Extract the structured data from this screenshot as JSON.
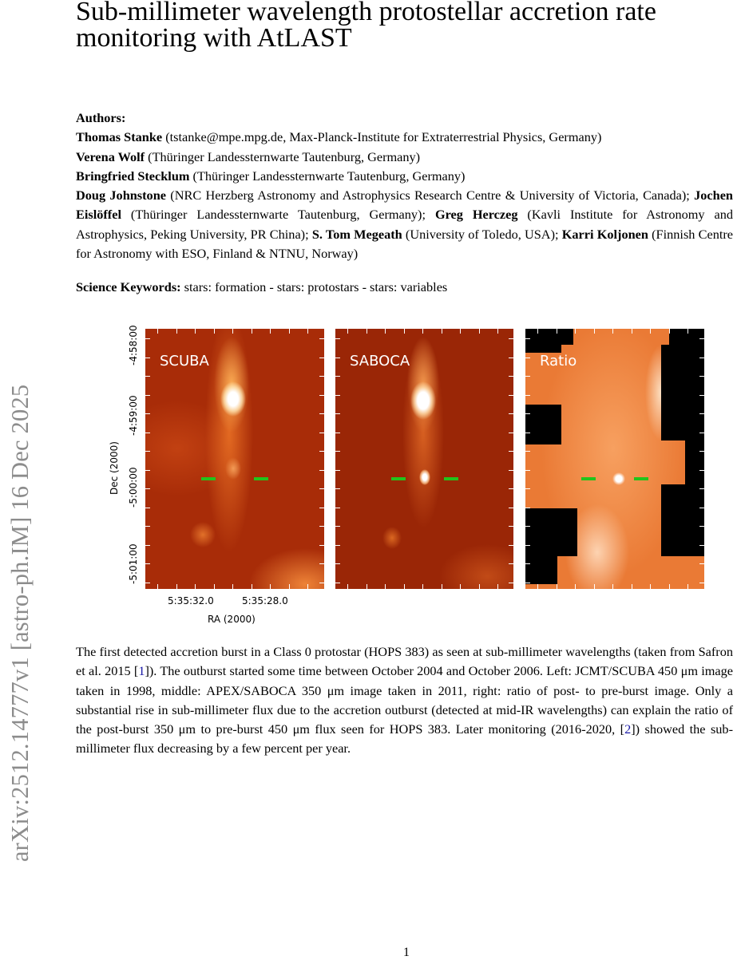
{
  "arxiv_stamp": "arXiv:2512.14777v1  [astro-ph.IM]  16 Dec 2025",
  "title": "Sub-millimeter wavelength protostellar accretion rate monitoring with AtLAST",
  "authors_heading": "Authors:",
  "authors": [
    {
      "name": "Thomas Stanke",
      "affil": " (tstanke@mpe.mpg.de, Max-Planck-Institute for Extraterrestrial Physics, Germany)"
    },
    {
      "name": "Verena Wolf",
      "affil": " (Thüringer Landessternwarte Tautenburg, Germany)"
    },
    {
      "name": "Bringfried Stecklum",
      "affil": " (Thüringer Landessternwarte Tautenburg, Germany)"
    },
    {
      "name": "Doug Johnstone",
      "affil": " (NRC Herzberg Astronomy and Astrophysics Research Centre & University of Victoria, Canada); "
    },
    {
      "name": "Jochen Eislöffel",
      "affil": " (Thüringer Landessternwarte Tautenburg, Germany); "
    },
    {
      "name": "Greg Herczeg",
      "affil": " (Kavli Institute for Astronomy and Astrophysics, Peking University, PR China); "
    },
    {
      "name": "S. Tom Megeath",
      "affil": " (University of Toledo, USA); "
    },
    {
      "name": "Karri Koljonen",
      "affil": " (Finnish Centre for Astronomy with ESO, Finland & NTNU, Norway)"
    }
  ],
  "keywords_label": "Science Keywords:",
  "keywords": " stars: formation - stars: protostars - stars: variables",
  "figure": {
    "panels": [
      "SCUBA",
      "SABOCA",
      "Ratio"
    ],
    "ylabel": "Dec (2000)",
    "xlabel": "RA (2000)",
    "yticks": [
      "-4:58:00",
      "-4:59:00",
      "-5:00:00",
      "-5:01:00"
    ],
    "xticks": [
      "5:35:32.0",
      "5:35:28.0"
    ],
    "marker_color": "#22c41c",
    "colormap": "red-orange-white heat"
  },
  "caption": {
    "t1": "The first detected accretion burst in a Class 0 protostar (HOPS 383) as seen at sub-millimeter wavelengths (taken from Safron et al. 2015 [",
    "c1": "1",
    "t2": "]).  The outburst started some time between October 2004 and October 2006.  Left: JCMT/SCUBA 450 μm image taken in 1998, middle: APEX/SABOCA 350 μm image taken in 2011, right: ratio of post- to pre-burst image.  Only a substantial rise in sub-millimeter flux due to the accretion outburst (detected at mid-IR wavelengths) can explain the ratio of the post-burst 350 μm to pre-burst 450 μm flux seen for HOPS 383. Later monitoring (2016-2020, [",
    "c2": "2",
    "t3": "]) showed the sub-millimeter flux decreasing by a few percent per year."
  },
  "page_number": "1"
}
